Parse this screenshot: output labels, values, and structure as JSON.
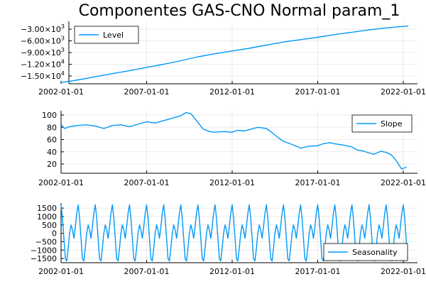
{
  "chart_data": {
    "type": "line",
    "title": "Componentes GAS-CNO Normal param_1",
    "series_color": "#009af9",
    "x_ticks": [
      "2002-01-01",
      "2007-01-01",
      "2012-01-01",
      "2017-01-01",
      "2022-01-01"
    ],
    "x_range": [
      "2002-01-01",
      "2022-01-01"
    ],
    "grid": true,
    "panels": [
      {
        "series_name": "Level",
        "legend_position": "top-left",
        "y_range": [
          -17000,
          -1000
        ],
        "y_ticks": [
          {
            "value": -3000,
            "mant": "−3.00×10",
            "exp": "3"
          },
          {
            "value": -6000,
            "mant": "−6.00×10",
            "exp": "3"
          },
          {
            "value": -9000,
            "mant": "−9.00×10",
            "exp": "3"
          },
          {
            "value": -12000,
            "mant": "−1.20×10",
            "exp": "4"
          },
          {
            "value": -15000,
            "mant": "−1.50×10",
            "exp": "4"
          }
        ],
        "x": [
          2002.0,
          2003.0,
          2004.0,
          2005.0,
          2006.0,
          2007.0,
          2008.0,
          2009.0,
          2010.0,
          2011.0,
          2012.0,
          2013.0,
          2014.0,
          2015.0,
          2016.0,
          2017.0,
          2018.0,
          2019.0,
          2020.0,
          2021.0,
          2022.0,
          2022.3
        ],
        "values": [
          -16700,
          -16000,
          -15200,
          -14400,
          -13650,
          -12800,
          -12000,
          -11100,
          -10100,
          -9300,
          -8600,
          -7900,
          -7100,
          -6300,
          -5700,
          -5100,
          -4400,
          -3800,
          -3200,
          -2700,
          -2300,
          -2200
        ]
      },
      {
        "series_name": "Slope",
        "legend_position": "top-right",
        "y_range": [
          5,
          107
        ],
        "y_ticks": [
          {
            "value": 20,
            "label": "20"
          },
          {
            "value": 40,
            "label": "40"
          },
          {
            "value": 60,
            "label": "60"
          },
          {
            "value": 80,
            "label": "80"
          },
          {
            "value": 100,
            "label": "100"
          }
        ],
        "x": [
          2002.0,
          2002.2,
          2002.5,
          2003.0,
          2003.5,
          2004.0,
          2004.5,
          2005.0,
          2005.5,
          2006.0,
          2006.5,
          2007.0,
          2007.5,
          2008.0,
          2008.5,
          2009.0,
          2009.3,
          2009.6,
          2010.0,
          2010.3,
          2010.7,
          2011.0,
          2011.5,
          2012.0,
          2012.3,
          2012.7,
          2013.0,
          2013.5,
          2014.0,
          2014.3,
          2014.7,
          2015.0,
          2015.5,
          2016.0,
          2016.5,
          2017.0,
          2017.3,
          2017.7,
          2018.0,
          2018.5,
          2019.0,
          2019.3,
          2019.7,
          2020.0,
          2020.3,
          2020.7,
          2021.0,
          2021.3,
          2021.6,
          2021.9,
          2022.2
        ],
        "values": [
          85,
          78,
          81,
          83,
          84,
          82,
          78,
          83,
          84,
          81,
          85,
          89,
          87,
          91,
          95,
          99,
          104,
          102,
          88,
          77,
          73,
          72,
          73,
          72,
          75,
          74,
          76,
          80,
          78,
          72,
          63,
          57,
          52,
          46,
          49,
          50,
          53,
          55,
          53,
          51,
          48,
          43,
          41,
          38,
          36,
          41,
          39,
          35,
          25,
          12,
          15
        ]
      },
      {
        "series_name": "Seasonality",
        "legend_position": "bottom-right",
        "y_range": [
          -1750,
          1800
        ],
        "y_ticks": [
          {
            "value": 1500,
            "label": "1500"
          },
          {
            "value": 1000,
            "label": "1000"
          },
          {
            "value": 500,
            "label": "500"
          },
          {
            "value": 0,
            "label": "0"
          },
          {
            "value": -500,
            "label": "−500"
          },
          {
            "value": -1000,
            "label": "−1000"
          },
          {
            "value": -1500,
            "label": "−1500"
          }
        ],
        "period_years": 1,
        "cycle_values": [
          1700,
          900,
          -300,
          -1500,
          -1650,
          -900,
          0,
          500,
          200,
          -300,
          400,
          1200,
          1700
        ]
      }
    ]
  }
}
